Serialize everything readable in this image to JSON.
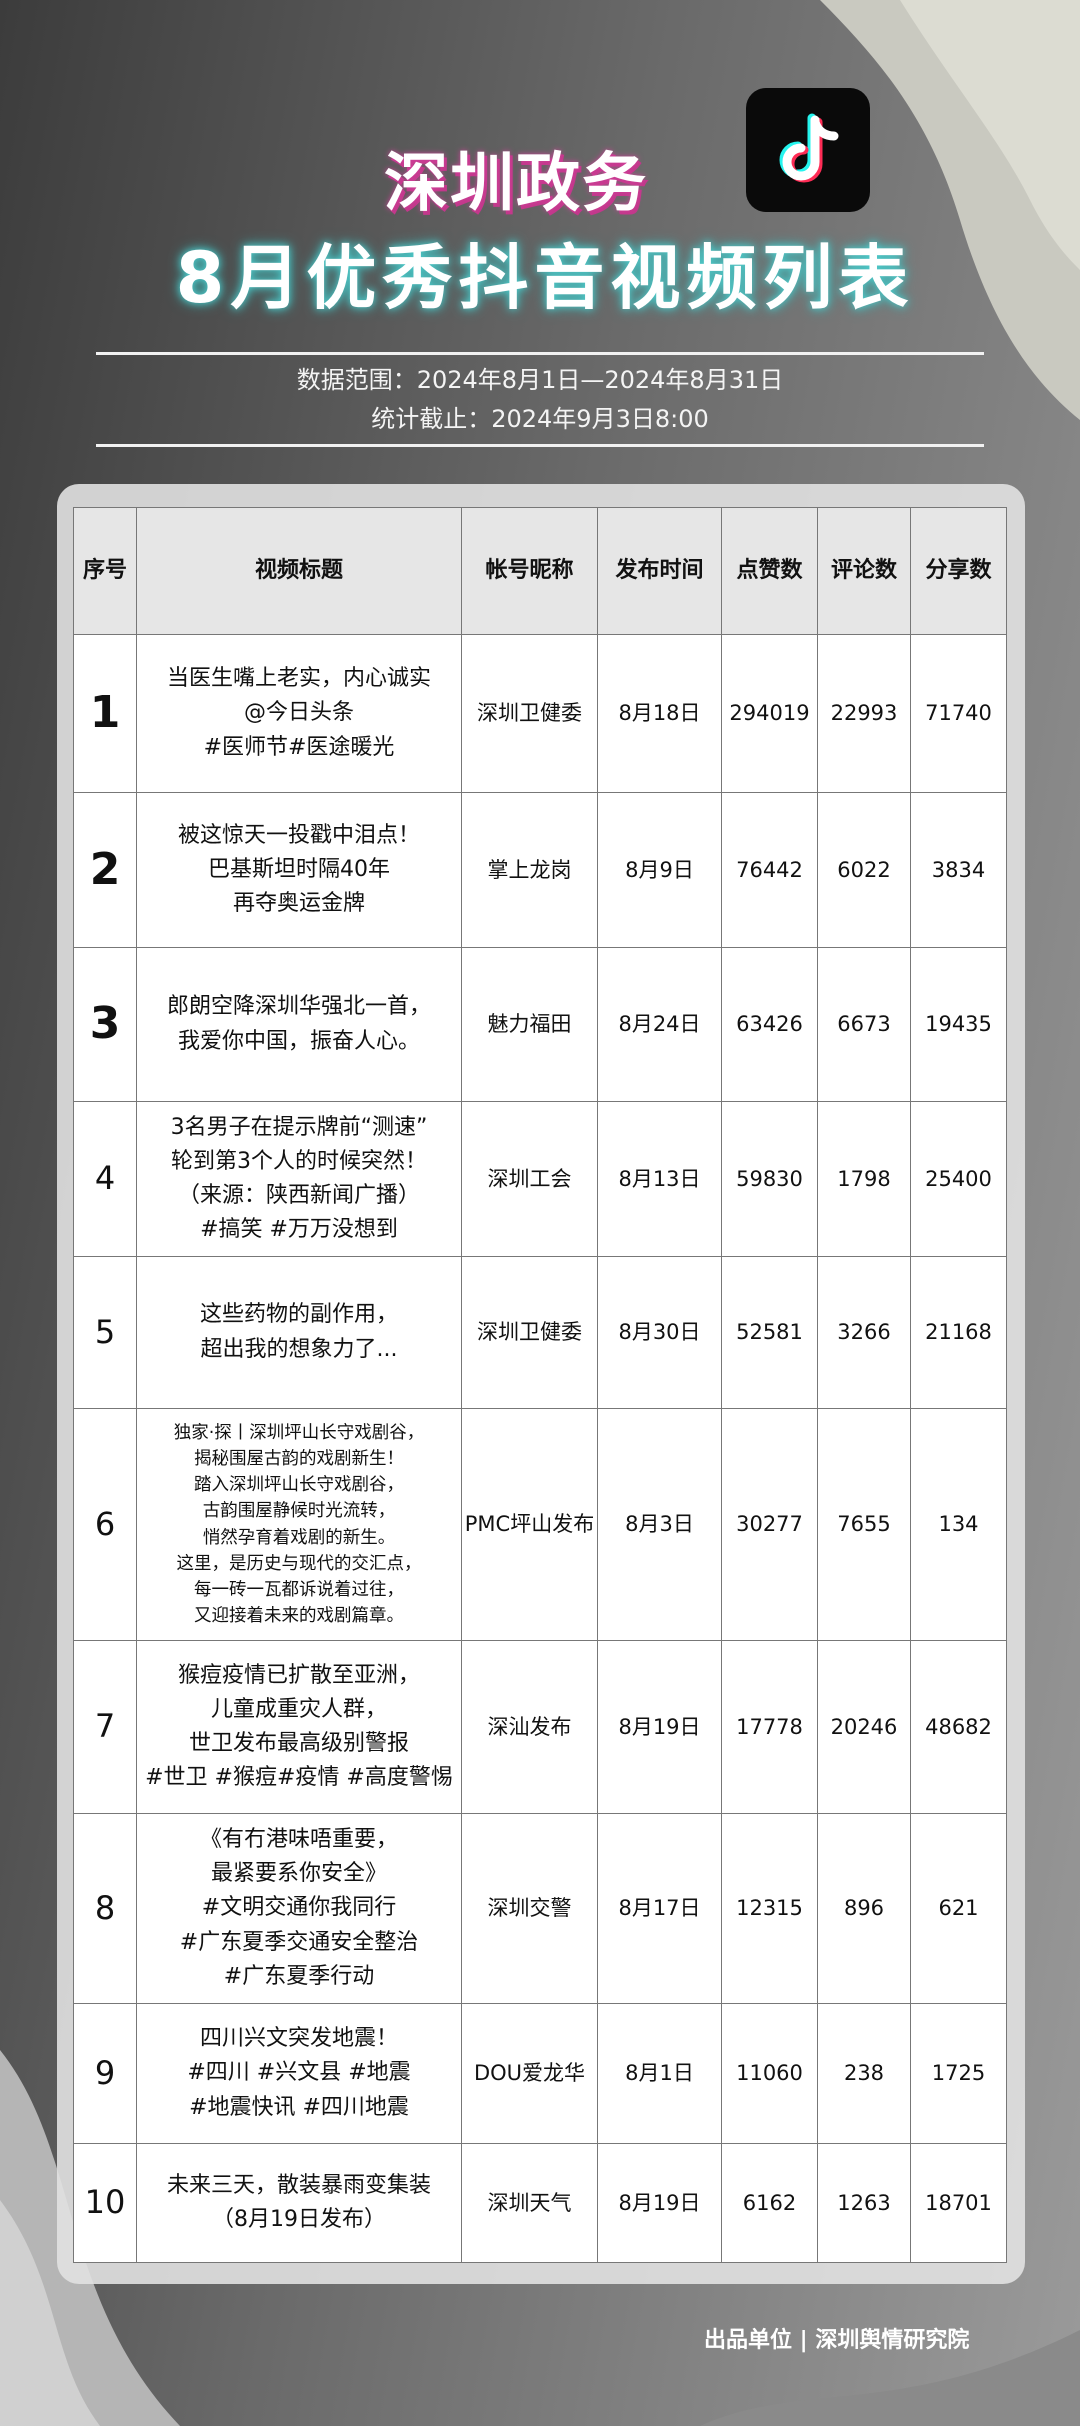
{
  "header": {
    "title_line1": "深圳政务",
    "title_line2": "8月优秀抖音视频列表",
    "logo": "tiktok-note-icon",
    "data_range": "数据范围：2024年8月1日—2024年8月31日",
    "cutoff": "统计截止：2024年9月3日8:00"
  },
  "table": {
    "columns": [
      "序号",
      "视频标题",
      "帐号昵称",
      "发布时间",
      "点赞数",
      "评论数",
      "分享数"
    ],
    "rows": [
      {
        "rank": "1",
        "title": [
          "当医生嘴上老实，内心诚实",
          "@今日头条",
          "#医师节#医途暖光"
        ],
        "account": "深圳卫健委",
        "date": "8月18日",
        "likes": "294019",
        "comments": "22993",
        "shares": "71740"
      },
      {
        "rank": "2",
        "title": [
          "被这惊天一投戳中泪点！",
          "巴基斯坦时隔40年",
          "再夺奥运金牌"
        ],
        "account": "掌上龙岗",
        "date": "8月9日",
        "likes": "76442",
        "comments": "6022",
        "shares": "3834"
      },
      {
        "rank": "3",
        "title": [
          "郎朗空降深圳华强北一首，",
          "我爱你中国，振奋人心。"
        ],
        "account": "魅力福田",
        "date": "8月24日",
        "likes": "63426",
        "comments": "6673",
        "shares": "19435"
      },
      {
        "rank": "4",
        "title": [
          "3名男子在提示牌前“测速”",
          "轮到第3个人的时候突然！",
          "（来源：陕西新闻广播）",
          "#搞笑 #万万没想到"
        ],
        "account": "深圳工会",
        "date": "8月13日",
        "likes": "59830",
        "comments": "1798",
        "shares": "25400"
      },
      {
        "rank": "5",
        "title": [
          "这些药物的副作用，",
          "超出我的想象力了..."
        ],
        "account": "深圳卫健委",
        "date": "8月30日",
        "likes": "52581",
        "comments": "3266",
        "shares": "21168"
      },
      {
        "rank": "6",
        "title": [
          "独家·探丨深圳坪山长守戏剧谷，",
          "揭秘围屋古韵的戏剧新生！",
          "踏入深圳坪山长守戏剧谷，",
          "古韵围屋静候时光流转，",
          "悄然孕育着戏剧的新生。",
          "这里，是历史与现代的交汇点，",
          "每一砖一瓦都诉说着过往，",
          "又迎接着未来的戏剧篇章。"
        ],
        "account": "PMC坪山发布",
        "date": "8月3日",
        "likes": "30277",
        "comments": "7655",
        "shares": "134"
      },
      {
        "rank": "7",
        "title": [
          "猴痘疫情已扩散至亚洲，",
          "儿童成重灾人群，",
          "世卫发布最高级别警报",
          "#世卫 #猴痘#疫情 #高度警惕"
        ],
        "account": "深汕发布",
        "date": "8月19日",
        "likes": "17778",
        "comments": "20246",
        "shares": "48682"
      },
      {
        "rank": "8",
        "title": [
          "《有冇港味唔重要，",
          "最紧要系你安全》",
          "#文明交通你我同行",
          "#广东夏季交通安全整治",
          "#广东夏季行动"
        ],
        "account": "深圳交警",
        "date": "8月17日",
        "likes": "12315",
        "comments": "896",
        "shares": "621"
      },
      {
        "rank": "9",
        "title": [
          "四川兴文突发地震！",
          "#四川 #兴文县 #地震",
          "#地震快讯 #四川地震"
        ],
        "account": "DOU爱龙华",
        "date": "8月1日",
        "likes": "11060",
        "comments": "238",
        "shares": "1725"
      },
      {
        "rank": "10",
        "title": [
          "未来三天，散装暴雨变集装",
          "（8月19日发布）"
        ],
        "account": "深圳天气",
        "date": "8月19日",
        "likes": "6162",
        "comments": "1263",
        "shares": "18701"
      }
    ]
  },
  "footer": "出品单位 | 深圳舆情研究院",
  "colors": {
    "title_glow_pink": "#c2388b",
    "title_glow_cyan": "#4fd0d0",
    "logo_bg": "#0a0a0a"
  }
}
